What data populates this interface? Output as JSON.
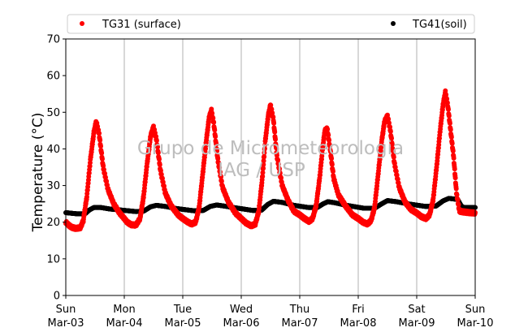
{
  "chart_data": {
    "type": "scatter",
    "ylabel": "Temperature (°C)",
    "ylim": [
      0,
      70
    ],
    "yticks": [
      0,
      10,
      20,
      30,
      40,
      50,
      60,
      70
    ],
    "xlim_days": [
      0,
      7
    ],
    "x_ticks": [
      {
        "day": "Sun",
        "date": "Mar-03"
      },
      {
        "day": "Mon",
        "date": "Mar-04"
      },
      {
        "day": "Tue",
        "date": "Mar-05"
      },
      {
        "day": "Wed",
        "date": "Mar-06"
      },
      {
        "day": "Thu",
        "date": "Mar-07"
      },
      {
        "day": "Fri",
        "date": "Mar-08"
      },
      {
        "day": "Sat",
        "date": "Mar-09"
      },
      {
        "day": "Sun",
        "date": "Mar-10"
      }
    ],
    "grid": "vertical",
    "legend_position": "top",
    "series": [
      {
        "name": "TG31 (surface)",
        "color": "#ff0000",
        "daily_min": [
          18.2,
          19.0,
          19.5,
          18.8,
          19.7,
          19.2,
          20.8,
          22.5
        ],
        "daily_max": [
          47.5,
          46.0,
          50.5,
          52.0,
          45.5,
          49.0,
          55.5
        ],
        "points": [
          [
            0.0,
            20.0
          ],
          [
            0.05,
            19.2
          ],
          [
            0.1,
            18.6
          ],
          [
            0.17,
            18.3
          ],
          [
            0.25,
            18.5
          ],
          [
            0.3,
            20.5
          ],
          [
            0.36,
            27.0
          ],
          [
            0.42,
            37.0
          ],
          [
            0.48,
            44.5
          ],
          [
            0.52,
            47.5
          ],
          [
            0.57,
            44.0
          ],
          [
            0.64,
            35.0
          ],
          [
            0.72,
            29.0
          ],
          [
            0.82,
            25.0
          ],
          [
            0.92,
            22.5
          ],
          [
            1.0,
            21.0
          ],
          [
            1.05,
            20.0
          ],
          [
            1.12,
            19.3
          ],
          [
            1.2,
            19.2
          ],
          [
            1.27,
            21.0
          ],
          [
            1.33,
            27.0
          ],
          [
            1.39,
            36.0
          ],
          [
            1.45,
            43.5
          ],
          [
            1.5,
            46.0
          ],
          [
            1.55,
            42.5
          ],
          [
            1.62,
            34.0
          ],
          [
            1.7,
            28.0
          ],
          [
            1.8,
            24.5
          ],
          [
            1.92,
            22.0
          ],
          [
            2.0,
            21.0
          ],
          [
            2.07,
            20.2
          ],
          [
            2.15,
            19.5
          ],
          [
            2.22,
            20.0
          ],
          [
            2.28,
            24.0
          ],
          [
            2.34,
            33.0
          ],
          [
            2.4,
            42.0
          ],
          [
            2.45,
            48.5
          ],
          [
            2.49,
            50.5
          ],
          [
            2.53,
            47.0
          ],
          [
            2.6,
            37.0
          ],
          [
            2.68,
            29.5
          ],
          [
            2.78,
            25.5
          ],
          [
            2.9,
            22.5
          ],
          [
            3.0,
            21.0
          ],
          [
            3.08,
            19.8
          ],
          [
            3.17,
            19.0
          ],
          [
            3.24,
            19.5
          ],
          [
            3.3,
            23.0
          ],
          [
            3.36,
            32.0
          ],
          [
            3.41,
            42.0
          ],
          [
            3.46,
            49.0
          ],
          [
            3.5,
            52.0
          ],
          [
            3.55,
            48.0
          ],
          [
            3.61,
            38.0
          ],
          [
            3.7,
            30.0
          ],
          [
            3.8,
            26.0
          ],
          [
            3.9,
            23.0
          ],
          [
            4.0,
            22.0
          ],
          [
            4.08,
            21.0
          ],
          [
            4.16,
            20.2
          ],
          [
            4.22,
            21.0
          ],
          [
            4.28,
            24.5
          ],
          [
            4.34,
            32.0
          ],
          [
            4.39,
            40.0
          ],
          [
            4.43,
            45.0
          ],
          [
            4.47,
            45.5
          ],
          [
            4.52,
            40.0
          ],
          [
            4.58,
            32.0
          ],
          [
            4.66,
            27.5
          ],
          [
            4.78,
            24.5
          ],
          [
            4.9,
            22.0
          ],
          [
            5.0,
            21.0
          ],
          [
            5.08,
            20.0
          ],
          [
            5.16,
            19.5
          ],
          [
            5.22,
            20.5
          ],
          [
            5.28,
            24.0
          ],
          [
            5.34,
            33.0
          ],
          [
            5.4,
            42.0
          ],
          [
            5.45,
            47.5
          ],
          [
            5.5,
            49.0
          ],
          [
            5.55,
            45.0
          ],
          [
            5.62,
            36.0
          ],
          [
            5.7,
            29.5
          ],
          [
            5.8,
            25.5
          ],
          [
            5.9,
            23.5
          ],
          [
            6.0,
            22.5
          ],
          [
            6.08,
            21.5
          ],
          [
            6.16,
            21.0
          ],
          [
            6.22,
            22.0
          ],
          [
            6.28,
            26.0
          ],
          [
            6.34,
            35.0
          ],
          [
            6.4,
            45.0
          ],
          [
            6.45,
            52.0
          ],
          [
            6.49,
            55.5
          ],
          [
            6.53,
            52.0
          ],
          [
            6.58,
            45.0
          ],
          [
            6.63,
            38.0
          ],
          [
            6.68,
            28.0
          ],
          [
            6.73,
            23.0
          ],
          [
            6.8,
            22.8
          ],
          [
            6.9,
            22.6
          ],
          [
            7.0,
            22.5
          ]
        ]
      },
      {
        "name": "TG41(soil)",
        "color": "#000000",
        "points": [
          [
            0.0,
            22.6
          ],
          [
            0.18,
            22.3
          ],
          [
            0.33,
            22.3
          ],
          [
            0.4,
            23.3
          ],
          [
            0.48,
            24.0
          ],
          [
            0.6,
            24.0
          ],
          [
            0.75,
            23.6
          ],
          [
            0.95,
            23.3
          ],
          [
            1.2,
            22.9
          ],
          [
            1.33,
            23.0
          ],
          [
            1.45,
            24.2
          ],
          [
            1.55,
            24.6
          ],
          [
            1.7,
            24.3
          ],
          [
            1.9,
            23.7
          ],
          [
            2.2,
            23.1
          ],
          [
            2.35,
            23.2
          ],
          [
            2.47,
            24.3
          ],
          [
            2.58,
            24.7
          ],
          [
            2.75,
            24.3
          ],
          [
            2.95,
            23.8
          ],
          [
            3.2,
            23.2
          ],
          [
            3.35,
            23.3
          ],
          [
            3.45,
            24.8
          ],
          [
            3.55,
            25.7
          ],
          [
            3.7,
            25.4
          ],
          [
            3.9,
            24.6
          ],
          [
            4.15,
            24.0
          ],
          [
            4.3,
            24.0
          ],
          [
            4.4,
            25.0
          ],
          [
            4.48,
            25.6
          ],
          [
            4.6,
            25.3
          ],
          [
            4.8,
            24.6
          ],
          [
            5.1,
            23.8
          ],
          [
            5.28,
            23.8
          ],
          [
            5.4,
            25.0
          ],
          [
            5.5,
            25.9
          ],
          [
            5.65,
            25.6
          ],
          [
            5.85,
            25.0
          ],
          [
            6.15,
            24.3
          ],
          [
            6.33,
            24.4
          ],
          [
            6.45,
            25.8
          ],
          [
            6.55,
            26.5
          ],
          [
            6.7,
            26.2
          ],
          [
            6.76,
            24.5
          ],
          [
            6.8,
            24.0
          ],
          [
            7.0,
            24.0
          ]
        ]
      }
    ],
    "legend": [
      "TG31 (surface)",
      "TG41(soil)"
    ]
  },
  "watermark": {
    "line1": "Grupo de Micrometeorologia",
    "line2": "IAG / USP"
  }
}
